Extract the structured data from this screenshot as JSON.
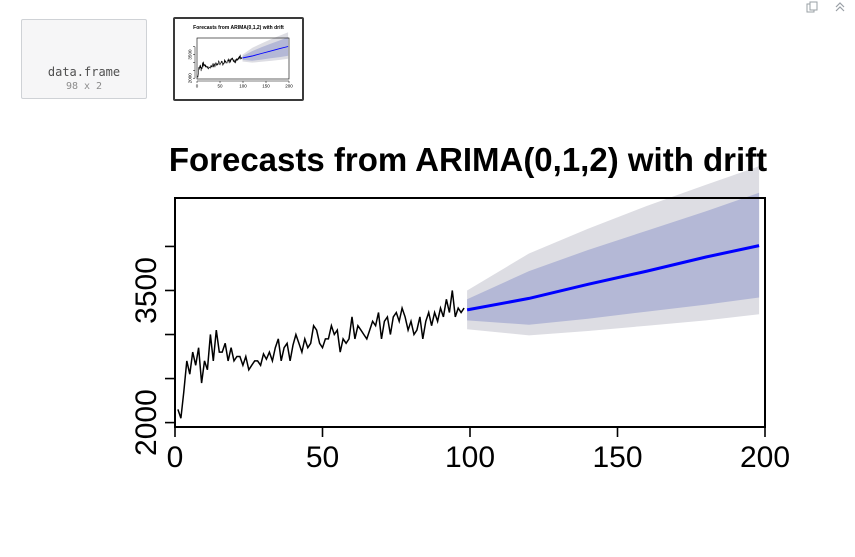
{
  "toolbar": {
    "icons": [
      "copy-icon",
      "collapse-up-icon"
    ]
  },
  "viewer": {
    "df_thumb": {
      "title": "data.frame",
      "dims": "98 x 2"
    },
    "plot_thumb": {
      "title": "Forecasts from ARIMA(0,1,2) with drift"
    }
  },
  "colors": {
    "history_line": "#000000",
    "forecast_line": "#0000ff",
    "band_80": "#b4b8d6",
    "band_95": "#dddde3"
  },
  "chart_data": {
    "type": "line",
    "title": "Forecasts from ARIMA(0,1,2) with drift",
    "xlabel": "",
    "ylabel": "",
    "xlim": [
      0,
      200
    ],
    "ylim": [
      1950,
      4550
    ],
    "x_ticks": [
      0,
      50,
      100,
      150,
      200
    ],
    "y_ticks": [
      2000,
      2500,
      3000,
      3500,
      4000
    ],
    "y_tick_labels": [
      "2000",
      "",
      "",
      "3500",
      ""
    ],
    "grid": false,
    "series": [
      {
        "role": "history",
        "x": [
          1,
          2,
          3,
          4,
          5,
          6,
          7,
          8,
          9,
          10,
          11,
          12,
          13,
          14,
          15,
          16,
          17,
          18,
          19,
          20,
          21,
          22,
          23,
          24,
          25,
          26,
          27,
          28,
          29,
          30,
          31,
          32,
          33,
          34,
          35,
          36,
          37,
          38,
          39,
          40,
          41,
          42,
          43,
          44,
          45,
          46,
          47,
          48,
          49,
          50,
          51,
          52,
          53,
          54,
          55,
          56,
          57,
          58,
          59,
          60,
          61,
          62,
          63,
          64,
          65,
          66,
          67,
          68,
          69,
          70,
          71,
          72,
          73,
          74,
          75,
          76,
          77,
          78,
          79,
          80,
          81,
          82,
          83,
          84,
          85,
          86,
          87,
          88,
          89,
          90,
          91,
          92,
          93,
          94,
          95,
          96,
          97,
          98
        ],
        "y": [
          2150,
          2050,
          2350,
          2700,
          2550,
          2800,
          2650,
          2850,
          2450,
          2700,
          2600,
          3000,
          2700,
          3050,
          2800,
          2800,
          2900,
          2700,
          2850,
          2700,
          2750,
          2750,
          2650,
          2750,
          2600,
          2650,
          2700,
          2700,
          2650,
          2780,
          2720,
          2800,
          2700,
          2850,
          2950,
          2700,
          2850,
          2900,
          2700,
          2880,
          3000,
          2900,
          2800,
          2950,
          2850,
          2900,
          3100,
          3050,
          2900,
          2850,
          2950,
          2950,
          3100,
          3000,
          3050,
          2800,
          2950,
          2900,
          2950,
          3200,
          2950,
          3100,
          3050,
          3000,
          2950,
          3050,
          3150,
          3100,
          3250,
          2950,
          3150,
          3200,
          3000,
          3200,
          3250,
          3150,
          3300,
          3200,
          3050,
          3150,
          3000,
          3050,
          3200,
          2950,
          3150,
          3250,
          3100,
          3250,
          3150,
          3300,
          3200,
          3400,
          3250,
          3500,
          3200,
          3300,
          3250,
          3300
        ]
      },
      {
        "role": "forecast",
        "x": [
          99,
          120,
          140,
          160,
          180,
          198
        ],
        "y": [
          3280,
          3410,
          3570,
          3720,
          3880,
          4010
        ],
        "lo80": [
          3160,
          3110,
          3180,
          3260,
          3340,
          3420
        ],
        "hi80": [
          3400,
          3720,
          3960,
          4180,
          4400,
          4610
        ],
        "lo95": [
          3060,
          2990,
          3040,
          3100,
          3160,
          3230
        ],
        "hi95": [
          3500,
          3920,
          4200,
          4460,
          4700,
          4910
        ]
      }
    ]
  }
}
